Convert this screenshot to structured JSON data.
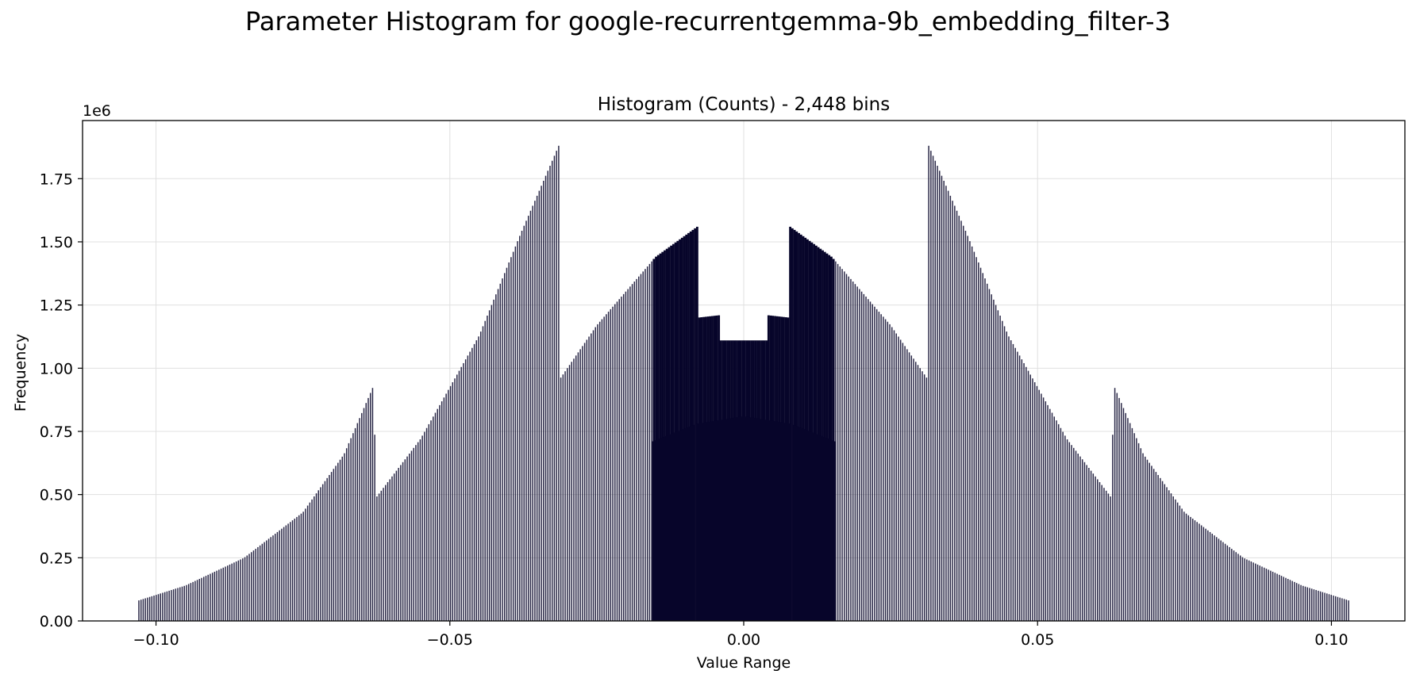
{
  "figure_title": "Parameter Histogram for google-recurrentgemma-9b_embedding_filter-3",
  "colors": {
    "bar": "#0d0a2e",
    "bar_fill_dense": "#07052a",
    "grid": "#e0e0e0",
    "axis": "#000000"
  },
  "chart_data": {
    "type": "bar",
    "title": "Histogram (Counts) - 2,448 bins",
    "xlabel": "Value Range",
    "ylabel": "Frequency",
    "y_multiplier_label": "1e6",
    "xlim": [
      -0.1125,
      0.1125
    ],
    "ylim": [
      0,
      1.98
    ],
    "xticks": [
      -0.1,
      -0.05,
      0.0,
      0.05,
      0.1
    ],
    "xtick_labels": [
      "−0.10",
      "−0.05",
      "0.00",
      "0.05",
      "0.10"
    ],
    "yticks": [
      0,
      0.25,
      0.5,
      0.75,
      1.0,
      1.25,
      1.5,
      1.75
    ],
    "ytick_labels": [
      "0.00",
      "0.25",
      "0.50",
      "0.75",
      "1.00",
      "1.25",
      "1.50",
      "1.75"
    ],
    "grid": true,
    "bins": 2448,
    "data_range": [
      -0.1031,
      0.1031
    ],
    "value_units": "millions of counts",
    "envelope_points": [
      {
        "x": -0.1031,
        "y": 0.08
      },
      {
        "x": -0.095,
        "y": 0.14
      },
      {
        "x": -0.085,
        "y": 0.25
      },
      {
        "x": -0.075,
        "y": 0.43
      },
      {
        "x": -0.068,
        "y": 0.66
      },
      {
        "x": -0.063,
        "y": 0.93
      },
      {
        "x": -0.0625,
        "y": 0.49
      },
      {
        "x": -0.055,
        "y": 0.72
      },
      {
        "x": -0.045,
        "y": 1.13
      },
      {
        "x": -0.038,
        "y": 1.53
      },
      {
        "x": -0.0313,
        "y": 1.89
      },
      {
        "x": -0.0312,
        "y": 0.96
      },
      {
        "x": -0.025,
        "y": 1.17
      },
      {
        "x": -0.015,
        "y": 1.44
      },
      {
        "x": -0.0079,
        "y": 1.56
      },
      {
        "x": -0.0078,
        "y": 1.2
      },
      {
        "x": -0.004,
        "y": 1.21
      },
      {
        "x": -0.0039,
        "y": 1.11
      },
      {
        "x": 0.0,
        "y": 1.11
      },
      {
        "x": 0.0039,
        "y": 1.11
      },
      {
        "x": 0.004,
        "y": 1.21
      },
      {
        "x": 0.0078,
        "y": 1.2
      },
      {
        "x": 0.0079,
        "y": 1.56
      },
      {
        "x": 0.015,
        "y": 1.44
      },
      {
        "x": 0.025,
        "y": 1.17
      },
      {
        "x": 0.0312,
        "y": 0.96
      },
      {
        "x": 0.0313,
        "y": 1.89
      },
      {
        "x": 0.038,
        "y": 1.53
      },
      {
        "x": 0.045,
        "y": 1.13
      },
      {
        "x": 0.055,
        "y": 0.72
      },
      {
        "x": 0.0625,
        "y": 0.49
      },
      {
        "x": 0.063,
        "y": 0.93
      },
      {
        "x": 0.068,
        "y": 0.66
      },
      {
        "x": 0.075,
        "y": 0.43
      },
      {
        "x": 0.085,
        "y": 0.25
      },
      {
        "x": 0.095,
        "y": 0.14
      },
      {
        "x": 0.1031,
        "y": 0.08
      }
    ],
    "inner_floor_points": [
      {
        "x": -0.0156,
        "y": 0.71
      },
      {
        "x": -0.008,
        "y": 0.78
      },
      {
        "x": 0.0,
        "y": 0.81
      },
      {
        "x": 0.008,
        "y": 0.78
      },
      {
        "x": 0.0156,
        "y": 0.71
      }
    ],
    "spike_points": [
      {
        "x": -0.0082,
        "y": 1.31
      },
      {
        "x": 0.0082,
        "y": 1.31
      }
    ]
  }
}
